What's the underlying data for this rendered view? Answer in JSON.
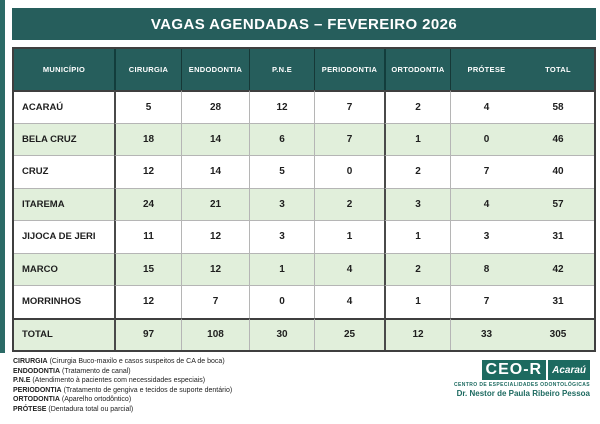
{
  "header": {
    "title": "VAGAS AGENDADAS – FEVEREIRO 2026"
  },
  "table": {
    "columns": [
      "MUNICÍPIO",
      "CIRURGIA",
      "ENDODONTIA",
      "P.N.E",
      "PERIODONTIA",
      "ORTODONTIA",
      "PRÓTESE",
      "TOTAL"
    ],
    "rows": [
      {
        "municipio": "ACARAÚ",
        "values": [
          5,
          28,
          12,
          7,
          2,
          4,
          58
        ]
      },
      {
        "municipio": "BELA CRUZ",
        "values": [
          18,
          14,
          6,
          7,
          1,
          0,
          46
        ]
      },
      {
        "municipio": "CRUZ",
        "values": [
          12,
          14,
          5,
          0,
          2,
          7,
          40
        ]
      },
      {
        "municipio": "ITAREMA",
        "values": [
          24,
          21,
          3,
          2,
          3,
          4,
          57
        ]
      },
      {
        "municipio": "JIJOCA DE JERI",
        "values": [
          11,
          12,
          3,
          1,
          1,
          3,
          31
        ]
      },
      {
        "municipio": "MARCO",
        "values": [
          15,
          12,
          1,
          4,
          2,
          8,
          42
        ]
      },
      {
        "municipio": "MORRINHOS",
        "values": [
          12,
          7,
          0,
          4,
          1,
          7,
          31
        ]
      },
      {
        "municipio": "TOTAL",
        "values": [
          97,
          108,
          30,
          25,
          12,
          33,
          305
        ],
        "is_total": true
      }
    ]
  },
  "legend": {
    "items": [
      {
        "term": "CIRURGIA",
        "description": "(Cirurgia Buco-maxilo e casos suspeitos de CA de boca)"
      },
      {
        "term": "ENDODONTIA",
        "description": "(Tratamento de canal)"
      },
      {
        "term": "P.N.E",
        "description": "(Atendimento à pacientes com necessidades especiais)"
      },
      {
        "term": "PERIODONTIA",
        "description": "(Tratamento de gengiva e tecidos de suporte dentário)"
      },
      {
        "term": "ORTODONTIA",
        "description": "(Aparelho ortodôntico)"
      },
      {
        "term": "PRÓTESE",
        "description": "(Dentadura total ou parcial)"
      }
    ]
  },
  "logo": {
    "primary": "CEO-R",
    "secondary": "Acaraú",
    "subtitle": "CENTRO DE ESPECIALIDADES ODONTOLÓGICAS",
    "tagline": "Dr. Nestor de Paula Ribeiro Pessoa"
  },
  "colors": {
    "teal_header": "#265e5c",
    "logo_teal": "#1d6a60",
    "row_green": "#e1efdb",
    "grid_gray": "#b5b5b5",
    "border_dark": "#3f3f3f"
  }
}
